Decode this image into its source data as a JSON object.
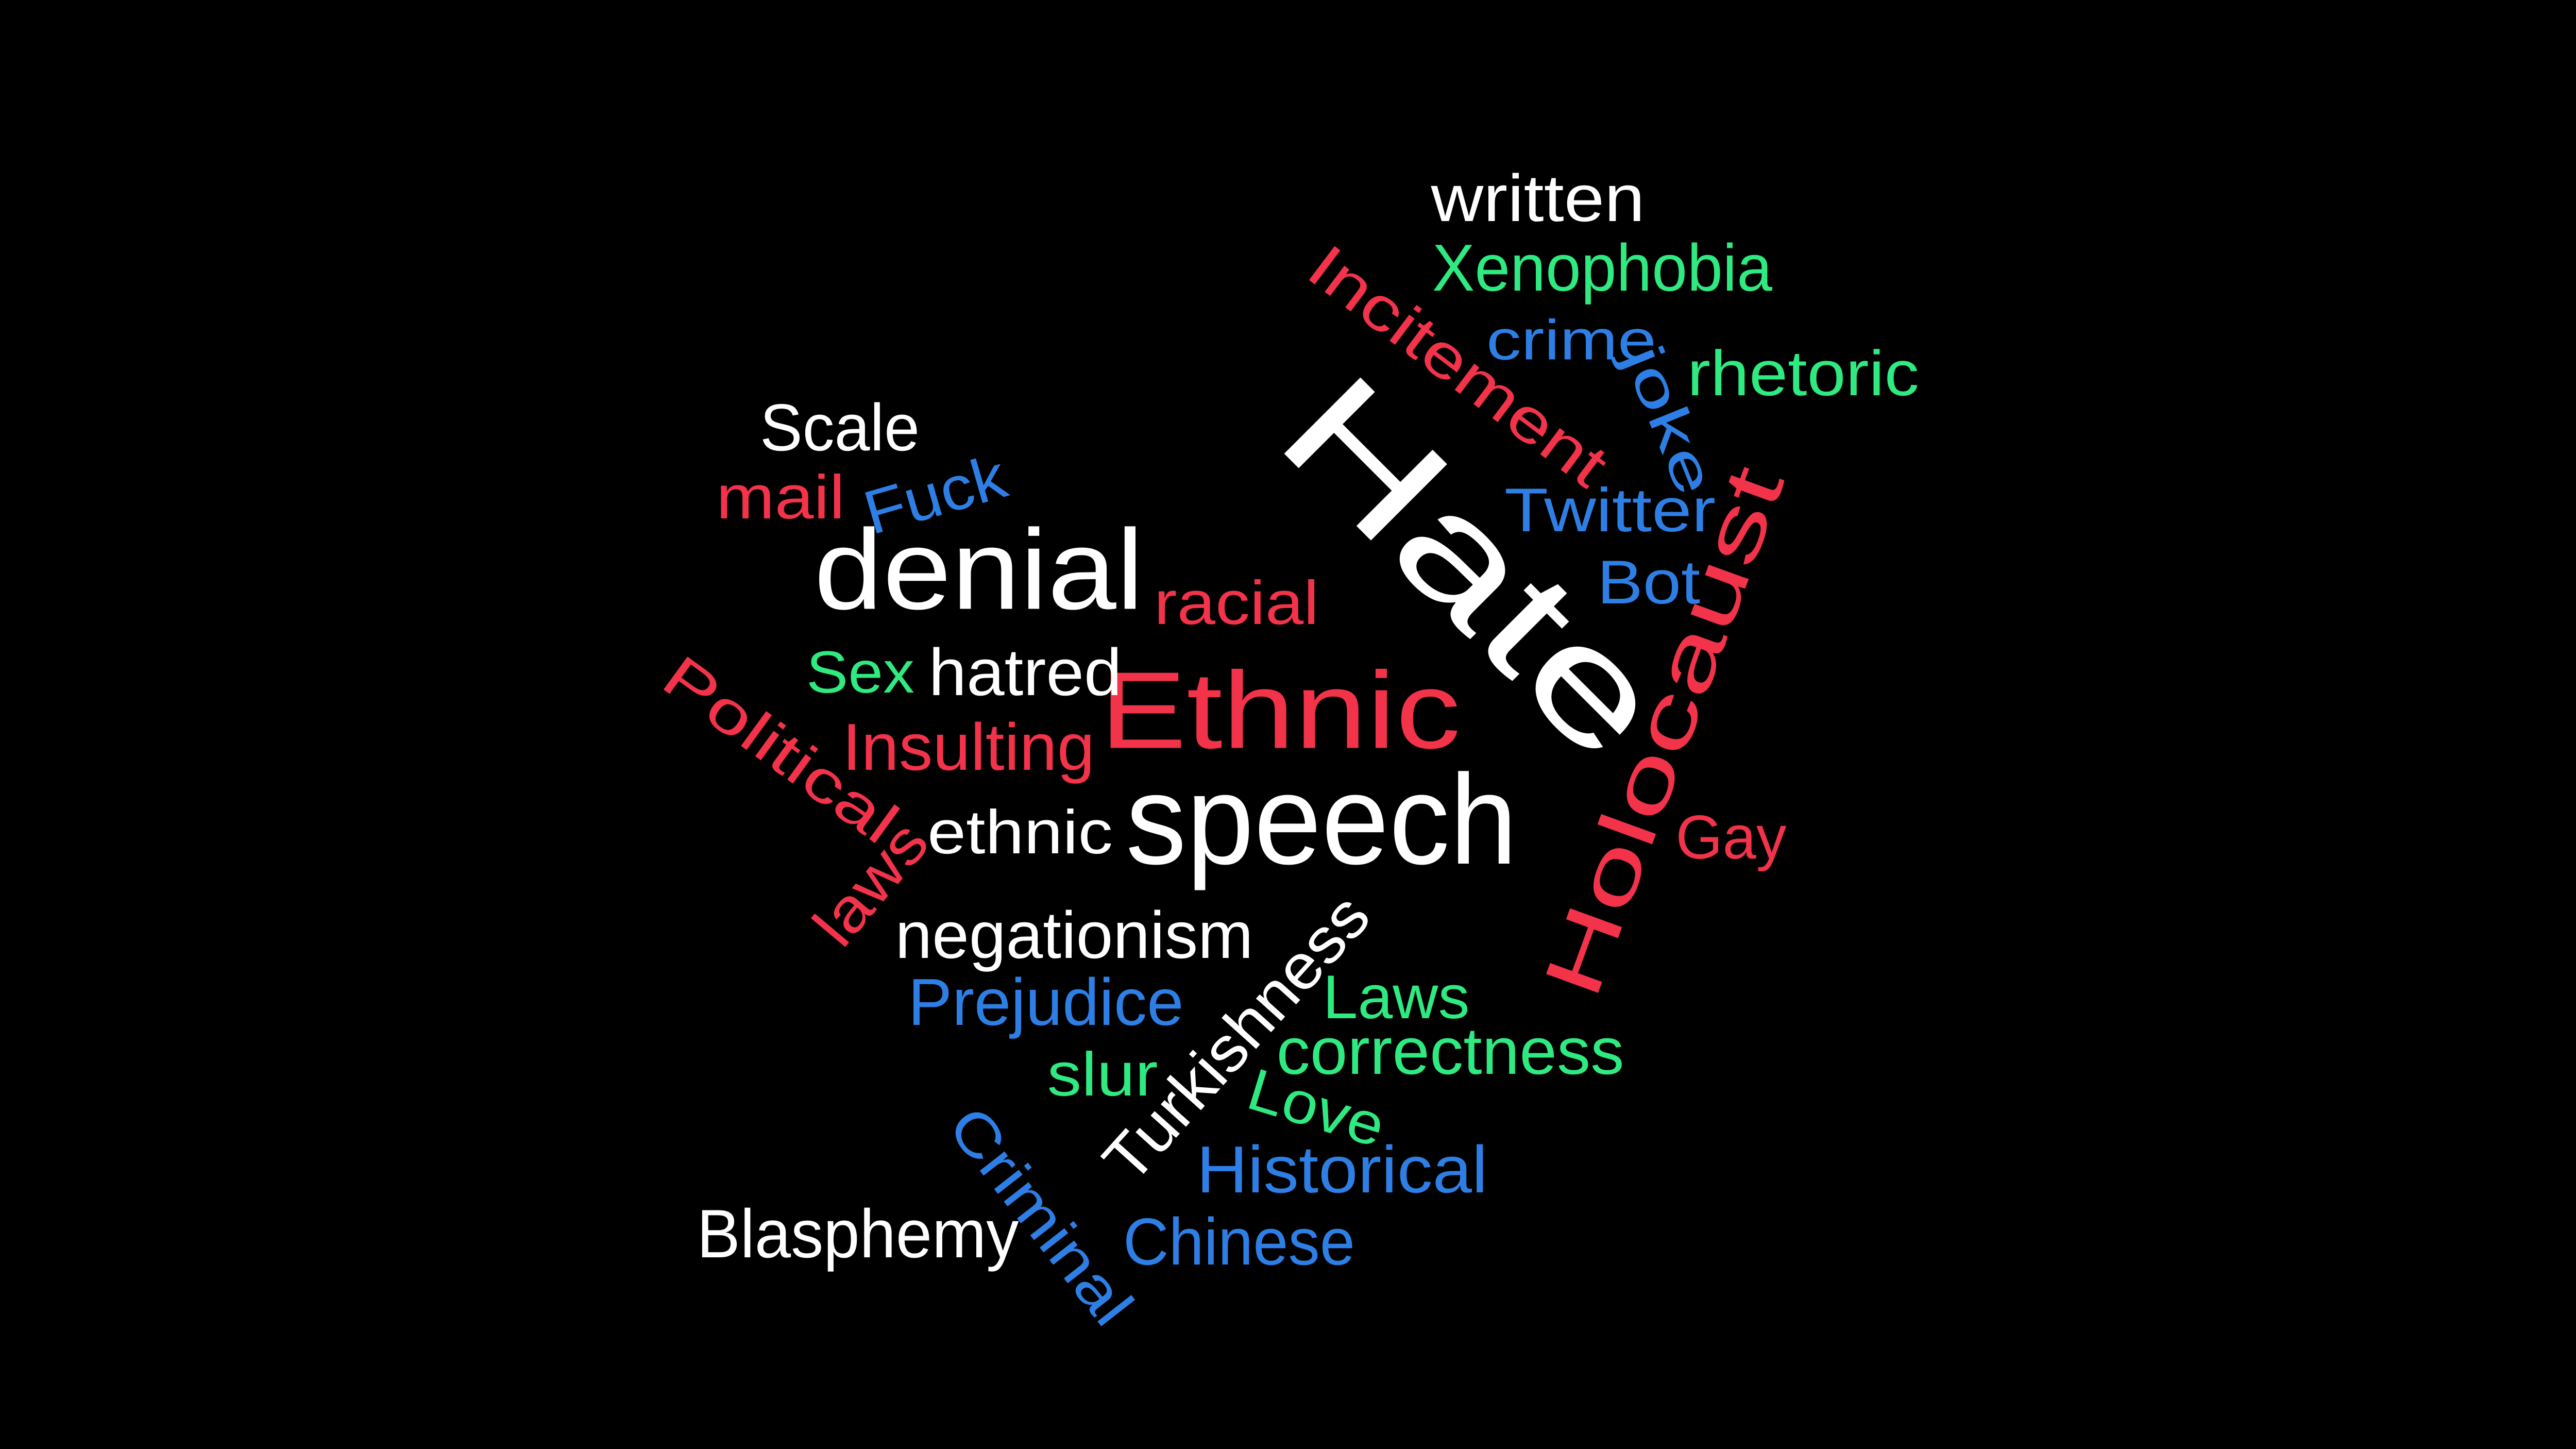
{
  "palette": {
    "background": "#000000",
    "white": "#FFFFFF",
    "red": "#F2334A",
    "blue": "#2E7FE5",
    "green": "#2FEA80"
  },
  "words": [
    {
      "id": "hate",
      "text": "Hate",
      "color": "red_white"
    },
    {
      "id": "ethnic-caps",
      "text": "Ethnic",
      "color": "red"
    },
    {
      "id": "speech",
      "text": "speech",
      "color": "white"
    },
    {
      "id": "denial",
      "text": "denial",
      "color": "white"
    },
    {
      "id": "holocaust",
      "text": "Holocaust",
      "color": "red"
    },
    {
      "id": "written",
      "text": "written",
      "color": "white"
    },
    {
      "id": "xenophobia",
      "text": "Xenophobia",
      "color": "green"
    },
    {
      "id": "incitement",
      "text": "Incitement",
      "color": "red"
    },
    {
      "id": "crime",
      "text": "crime",
      "color": "blue"
    },
    {
      "id": "joke",
      "text": "joke",
      "color": "blue"
    },
    {
      "id": "rhetoric",
      "text": "rhetoric",
      "color": "green"
    },
    {
      "id": "scale",
      "text": "Scale",
      "color": "white"
    },
    {
      "id": "mail",
      "text": "mail",
      "color": "red"
    },
    {
      "id": "fuck",
      "text": "Fuck",
      "color": "blue"
    },
    {
      "id": "twitter",
      "text": "Twitter",
      "color": "blue"
    },
    {
      "id": "bot",
      "text": "Bot",
      "color": "blue"
    },
    {
      "id": "racial",
      "text": "racial",
      "color": "red"
    },
    {
      "id": "sex",
      "text": "Sex",
      "color": "green"
    },
    {
      "id": "hatred",
      "text": "hatred",
      "color": "white"
    },
    {
      "id": "political",
      "text": "Political",
      "color": "red"
    },
    {
      "id": "insulting",
      "text": "Insulting",
      "color": "red"
    },
    {
      "id": "laws-lower",
      "text": "laws",
      "color": "red"
    },
    {
      "id": "ethnic-lower",
      "text": "ethnic",
      "color": "white"
    },
    {
      "id": "gay",
      "text": "Gay",
      "color": "red"
    },
    {
      "id": "negationism",
      "text": "negationism",
      "color": "white"
    },
    {
      "id": "turkishness",
      "text": "Turkishness",
      "color": "white"
    },
    {
      "id": "prejudice",
      "text": "Prejudice",
      "color": "blue"
    },
    {
      "id": "laws-caps",
      "text": "Laws",
      "color": "green"
    },
    {
      "id": "correctness",
      "text": "correctness",
      "color": "green"
    },
    {
      "id": "slur",
      "text": "slur",
      "color": "green"
    },
    {
      "id": "love",
      "text": "Love",
      "color": "green"
    },
    {
      "id": "criminal",
      "text": "Criminal",
      "color": "blue"
    },
    {
      "id": "historical",
      "text": "Historical",
      "color": "blue"
    },
    {
      "id": "chinese",
      "text": "Chinese",
      "color": "blue"
    },
    {
      "id": "blasphemy",
      "text": "Blasphemy",
      "color": "white"
    }
  ]
}
